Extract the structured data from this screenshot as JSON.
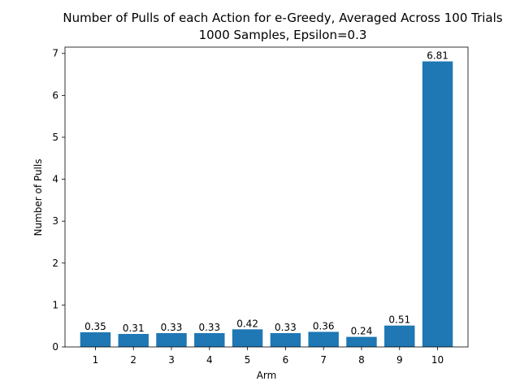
{
  "chart_data": {
    "type": "bar",
    "title": "Number of Pulls of each Action for e-Greedy, Averaged Across 100 Trials",
    "subtitle": "1000 Samples, Epsilon=0.3",
    "xlabel": "Arm",
    "ylabel": "Number of Pulls",
    "categories": [
      "1",
      "2",
      "3",
      "4",
      "5",
      "6",
      "7",
      "8",
      "9",
      "10"
    ],
    "values": [
      0.35,
      0.31,
      0.33,
      0.33,
      0.42,
      0.33,
      0.36,
      0.24,
      0.51,
      6.81
    ],
    "data_labels": [
      "0.35",
      "0.31",
      "0.33",
      "0.33",
      "0.42",
      "0.33",
      "0.36",
      "0.24",
      "0.51",
      "6.81"
    ],
    "y_ticks": [
      "0",
      "1",
      "2",
      "3",
      "4",
      "5",
      "6",
      "7"
    ],
    "ylim": [
      0,
      7.15
    ],
    "bar_color": "#1f77b4",
    "grid": false,
    "legend": "none"
  }
}
